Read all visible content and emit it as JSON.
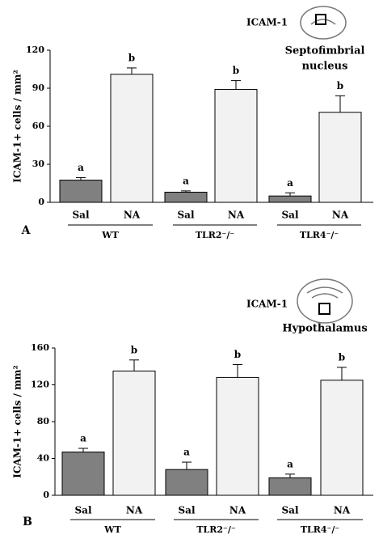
{
  "chart_data": [
    {
      "type": "bar",
      "panel": "A",
      "ylabel": "ICAM-1+ cells / mm²",
      "inset_label": "ICAM-1",
      "region": [
        "Septofimbrial",
        "nucleus"
      ],
      "categories": [
        "Sal",
        "NA",
        "Sal",
        "NA",
        "Sal",
        "NA"
      ],
      "groups": [
        "WT",
        "TLR2⁻/⁻",
        "TLR4⁻/⁻"
      ],
      "values": [
        17.5,
        101,
        8,
        89,
        5,
        71
      ],
      "errors": [
        2,
        5,
        1,
        7,
        2.5,
        13
      ],
      "letters": [
        "a",
        "b",
        "a",
        "b",
        "a",
        "b"
      ],
      "colors": [
        "#808080",
        "#f2f2f2",
        "#808080",
        "#f2f2f2",
        "#808080",
        "#f2f2f2"
      ],
      "ylim": [
        0,
        120
      ],
      "yticks": [
        0,
        30,
        60,
        90,
        120
      ]
    },
    {
      "type": "bar",
      "panel": "B",
      "ylabel": "ICAM-1+ cells / mm²",
      "inset_label": "ICAM-1",
      "region": [
        "Hypothalamus"
      ],
      "categories": [
        "Sal",
        "NA",
        "Sal",
        "NA",
        "Sal",
        "NA"
      ],
      "groups": [
        "WT",
        "TLR2⁻/⁻",
        "TLR4⁻/⁻"
      ],
      "values": [
        47,
        135,
        28,
        128,
        19,
        125
      ],
      "errors": [
        4,
        12,
        8,
        14,
        4,
        14
      ],
      "letters": [
        "a",
        "b",
        "a",
        "b",
        "a",
        "b"
      ],
      "colors": [
        "#808080",
        "#f2f2f2",
        "#808080",
        "#f2f2f2",
        "#808080",
        "#f2f2f2"
      ],
      "ylim": [
        0,
        160
      ],
      "yticks": [
        0,
        40,
        80,
        120,
        160
      ]
    }
  ]
}
